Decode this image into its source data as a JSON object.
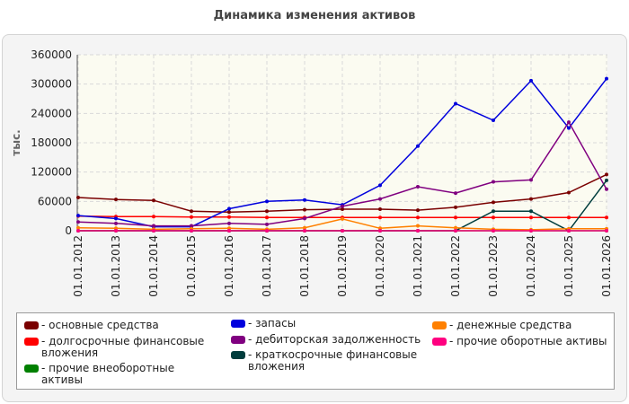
{
  "chart_data": {
    "type": "line",
    "title": "Динамика изменения активов",
    "ylabel": "тыс.",
    "xlabel": "",
    "ylim": [
      0,
      360000
    ],
    "yticks": [
      0,
      60000,
      120000,
      180000,
      240000,
      300000,
      360000
    ],
    "grid": true,
    "legend_position": "bottom",
    "categories": [
      "01.01.2012",
      "01.01.2013",
      "01.01.2014",
      "01.01.2015",
      "01.01.2016",
      "01.01.2017",
      "01.01.2018",
      "01.01.2019",
      "01.01.2020",
      "01.01.2021",
      "01.01.2022",
      "01.01.2023",
      "01.01.2024",
      "01.01.2025",
      "01.01.2026"
    ],
    "series": [
      {
        "name": "основные средства",
        "color": "#7a0000",
        "values": [
          68000,
          64000,
          62000,
          40000,
          38000,
          40000,
          43000,
          44000,
          44000,
          42000,
          48000,
          58000,
          65000,
          78000,
          115000
        ]
      },
      {
        "name": "долгосрочные финансовые вложения",
        "color": "#ff0000",
        "values": [
          30000,
          29000,
          29000,
          28000,
          28000,
          27000,
          27000,
          27000,
          27000,
          27000,
          27000,
          27000,
          27000,
          27000,
          27000
        ]
      },
      {
        "name": "прочие внеоборотные активы",
        "color": "#008000",
        "values": [
          0,
          0,
          0,
          0,
          0,
          0,
          0,
          0,
          0,
          0,
          0,
          0,
          0,
          0,
          0
        ]
      },
      {
        "name": "запасы",
        "color": "#0000dd",
        "values": [
          31000,
          25000,
          8000,
          8000,
          45000,
          60000,
          63000,
          53000,
          93000,
          173000,
          260000,
          226000,
          307000,
          210000,
          311000
        ]
      },
      {
        "name": "дебиторская задолженность",
        "color": "#800080",
        "values": [
          18000,
          15000,
          10000,
          10000,
          15000,
          13000,
          25000,
          50000,
          65000,
          90000,
          77000,
          100000,
          104000,
          222000,
          85000
        ]
      },
      {
        "name": "краткосрочные финансовые вложения",
        "color": "#003d3d",
        "values": [
          0,
          0,
          0,
          0,
          0,
          0,
          0,
          0,
          0,
          0,
          0,
          40000,
          40000,
          0,
          103000
        ]
      },
      {
        "name": "денежные средства",
        "color": "#ff8000",
        "values": [
          6000,
          5000,
          3000,
          4000,
          5000,
          3000,
          6000,
          24000,
          5000,
          10000,
          6000,
          3000,
          2000,
          4000,
          4000
        ]
      },
      {
        "name": "прочие оборотные активы",
        "color": "#ff0080",
        "values": [
          0,
          0,
          0,
          0,
          0,
          0,
          0,
          0,
          0,
          0,
          0,
          0,
          0,
          0,
          0
        ]
      }
    ]
  }
}
